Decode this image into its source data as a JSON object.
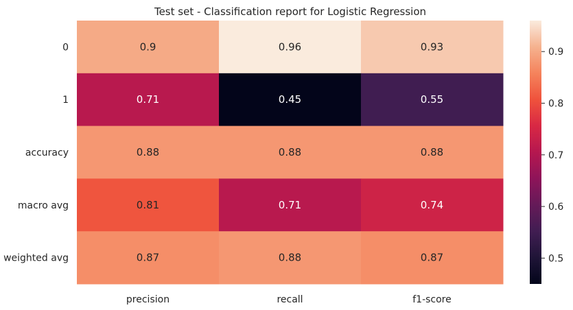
{
  "chart_data": {
    "type": "heatmap",
    "title": "Test set - Classification report for Logistic Regression",
    "xlabel": "",
    "ylabel": "",
    "columns": [
      "precision",
      "recall",
      "f1-score"
    ],
    "rows": [
      "0",
      "1",
      "accuracy",
      "macro avg",
      "weighted avg"
    ],
    "values": [
      [
        0.9,
        0.96,
        0.93
      ],
      [
        0.71,
        0.45,
        0.55
      ],
      [
        0.88,
        0.88,
        0.88
      ],
      [
        0.81,
        0.71,
        0.74
      ],
      [
        0.87,
        0.88,
        0.87
      ]
    ],
    "labels": [
      [
        "0.9",
        "0.96",
        "0.93"
      ],
      [
        "0.71",
        "0.45",
        "0.55"
      ],
      [
        "0.88",
        "0.88",
        "0.88"
      ],
      [
        "0.81",
        "0.71",
        "0.74"
      ],
      [
        "0.87",
        "0.88",
        "0.87"
      ]
    ],
    "colorbar": {
      "min": 0.45,
      "max": 0.96,
      "ticks": [
        0.5,
        0.6,
        0.7,
        0.8,
        0.9
      ],
      "tick_labels": [
        "0.5",
        "0.6",
        "0.7",
        "0.8",
        "0.9"
      ]
    },
    "colormap": "rocket",
    "grid": false
  }
}
